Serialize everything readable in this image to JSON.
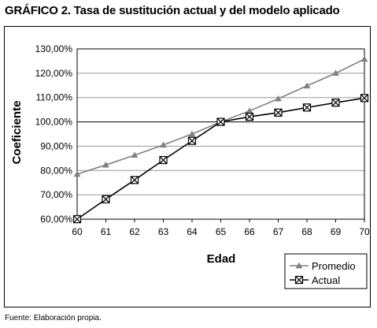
{
  "title": "GRÁFICO 2. Tasa de sustitución actual y del modelo aplicado",
  "source": "Fuente: Elaboración propia.",
  "chart_data": {
    "type": "line",
    "xlabel": "Edad",
    "ylabel": "Coeficiente",
    "x": [
      60,
      61,
      62,
      63,
      64,
      65,
      66,
      67,
      68,
      69,
      70
    ],
    "x_tick_labels": [
      "60",
      "61",
      "62",
      "63",
      "64",
      "65",
      "66",
      "67",
      "68",
      "69",
      "70"
    ],
    "ylim": [
      60,
      130
    ],
    "y_ticks": [
      60,
      70,
      80,
      90,
      100,
      110,
      120,
      130
    ],
    "y_tick_labels": [
      "60,00%",
      "70,00%",
      "80,00%",
      "90,00%",
      "100,00%",
      "110,00%",
      "120,00%",
      "130,00%"
    ],
    "grid": true,
    "legend_position": "bottom-right",
    "series": [
      {
        "name": "Promedio",
        "color": "#808080",
        "marker": "triangle",
        "values": [
          78.5,
          82.3,
          86.3,
          90.5,
          95.0,
          100.0,
          104.5,
          109.5,
          114.8,
          120.0,
          125.8
        ]
      },
      {
        "name": "Actual",
        "color": "#000000",
        "marker": "boxed-x",
        "values": [
          60.0,
          68.2,
          76.1,
          84.3,
          92.2,
          100.0,
          102.1,
          103.8,
          105.9,
          107.9,
          109.8
        ]
      }
    ]
  }
}
